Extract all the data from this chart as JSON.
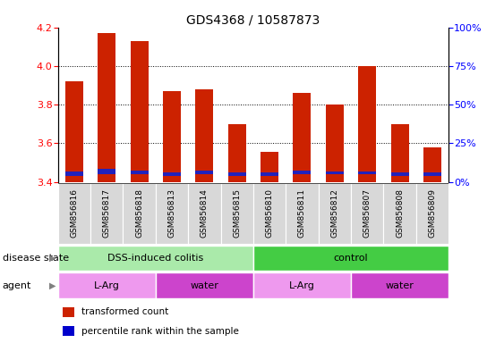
{
  "title": "GDS4368 / 10587873",
  "samples": [
    "GSM856816",
    "GSM856817",
    "GSM856818",
    "GSM856813",
    "GSM856814",
    "GSM856815",
    "GSM856810",
    "GSM856811",
    "GSM856812",
    "GSM856807",
    "GSM856808",
    "GSM856809"
  ],
  "red_tops": [
    3.92,
    4.17,
    4.13,
    3.87,
    3.88,
    3.7,
    3.555,
    3.86,
    3.8,
    4.0,
    3.7,
    3.58
  ],
  "blue_bottoms": [
    3.43,
    3.44,
    3.44,
    3.43,
    3.44,
    3.43,
    3.43,
    3.44,
    3.44,
    3.44,
    3.43,
    3.43
  ],
  "blue_tops": [
    3.455,
    3.465,
    3.46,
    3.45,
    3.458,
    3.448,
    3.447,
    3.458,
    3.453,
    3.455,
    3.448,
    3.448
  ],
  "bar_base": 3.4,
  "ylim": [
    3.4,
    4.2
  ],
  "yticks_left": [
    3.4,
    3.6,
    3.8,
    4.0,
    4.2
  ],
  "yticks_right": [
    0,
    25,
    50,
    75,
    100
  ],
  "ytick_labels_right": [
    "0%",
    "25%",
    "50%",
    "75%",
    "100%"
  ],
  "disease_state_groups": [
    {
      "label": "DSS-induced colitis",
      "start": 0,
      "end": 6,
      "color": "#aaeaaa"
    },
    {
      "label": "control",
      "start": 6,
      "end": 12,
      "color": "#44cc44"
    }
  ],
  "agent_groups": [
    {
      "label": "L-Arg",
      "start": 0,
      "end": 3,
      "color": "#ee99ee"
    },
    {
      "label": "water",
      "start": 3,
      "end": 6,
      "color": "#cc44cc"
    },
    {
      "label": "L-Arg",
      "start": 6,
      "end": 9,
      "color": "#ee99ee"
    },
    {
      "label": "water",
      "start": 9,
      "end": 12,
      "color": "#cc44cc"
    }
  ],
  "disease_label": "disease state",
  "agent_label": "agent",
  "legend_items": [
    {
      "label": "transformed count",
      "color": "#cc2200"
    },
    {
      "label": "percentile rank within the sample",
      "color": "#0000cc"
    }
  ],
  "red_color": "#cc2200",
  "blue_color": "#2222bb",
  "bar_width": 0.55,
  "title_fontsize": 10,
  "tick_fontsize": 7,
  "label_fontsize": 8,
  "xtick_fontsize": 6.5
}
